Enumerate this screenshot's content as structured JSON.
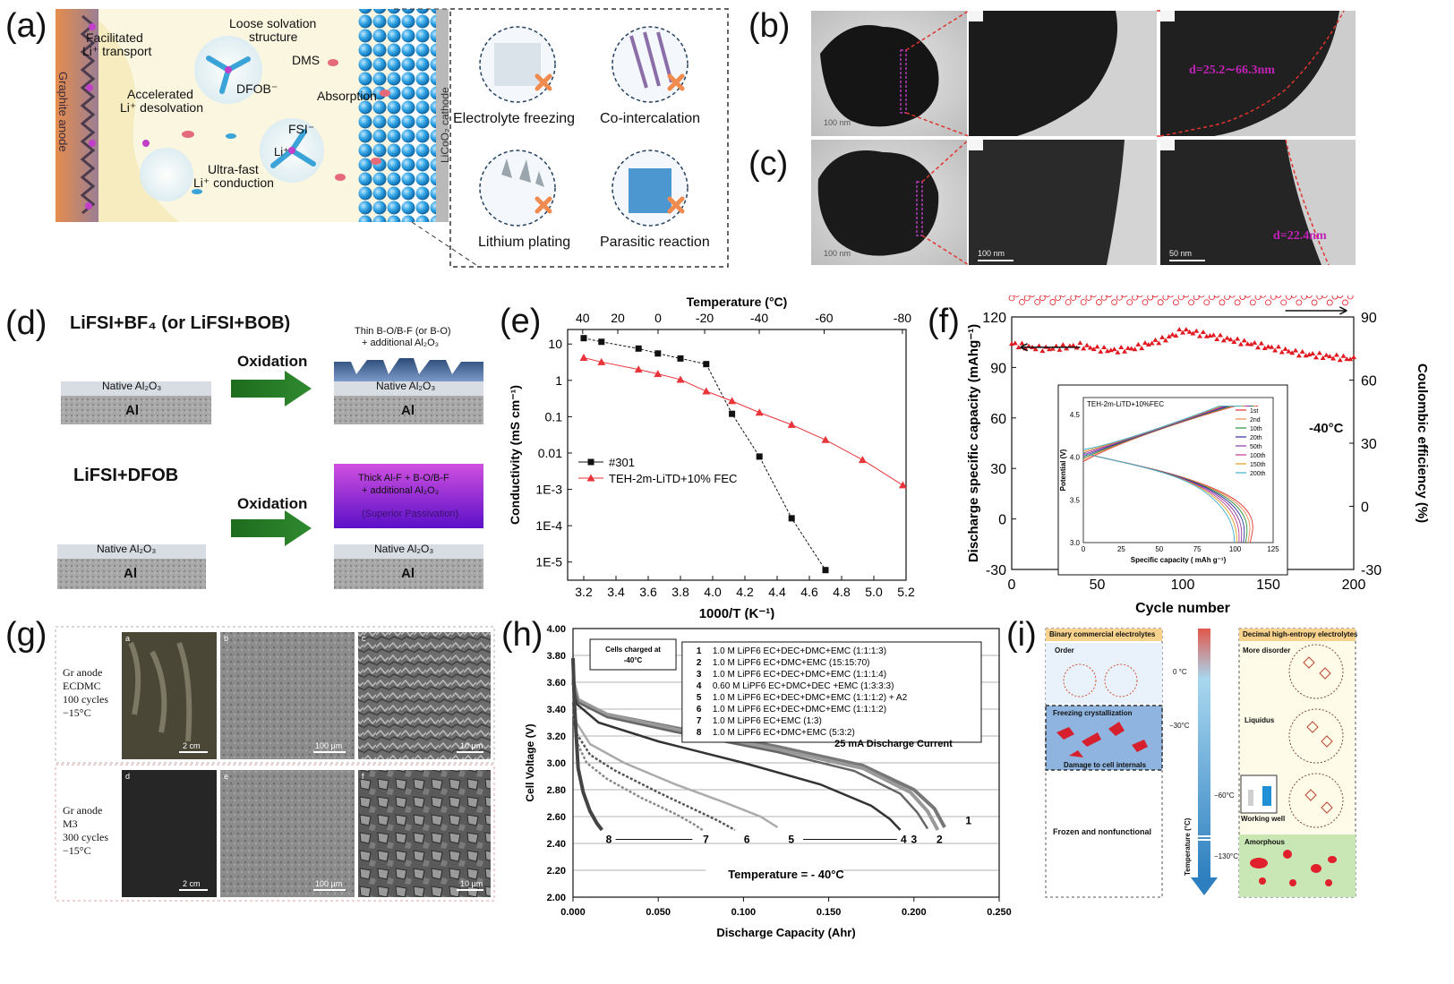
{
  "panels": {
    "a": {
      "label": "(a)",
      "graphite": "Graphite anode",
      "cathode": "LiCoO₂ cathode",
      "texts": [
        "Facilitated",
        "Li⁺ transport",
        "Accelerated",
        "Li⁺ desolvation",
        "Loose solvation",
        "structure",
        "DMS",
        "DFOB⁻",
        "FSI⁻",
        "Li⁺",
        "Absorption",
        "Ultra-fast",
        "Li⁺ conduction"
      ],
      "issues": [
        "Electrolyte freezing",
        "Co-intercalation",
        "Lithium plating",
        "Parasitic reaction"
      ]
    },
    "b": {
      "label": "(b)",
      "annotation": "d=25.2∼66.3nm",
      "scale": [
        "100 nm",
        "",
        ""
      ]
    },
    "c": {
      "label": "(c)",
      "annotation": "d=22.4nm",
      "scale": [
        "100 nm",
        "100 nm",
        "50 nm"
      ]
    },
    "d": {
      "label": "(d)",
      "title1": "LiFSI+BF₄ (or LiFSI+BOB)",
      "title2": "LiFSI+DFOB",
      "oxidation": "Oxidation",
      "native": "Native Al₂O₃",
      "al": "Al",
      "thin_layer": [
        "Thin B-O/B-F (or B-O)",
        "+ additional Al₂O₃"
      ],
      "thick_layer": [
        "Thick Al-F + B-O/B-F",
        "+ additional Al₂O₃",
        "(Superior Passivation)"
      ]
    },
    "e": {
      "label": "(e)"
    },
    "f": {
      "label": "(f)",
      "temp_note": "-40°C",
      "inset_title": "TEH-2m-LiTD+10%FEC",
      "inset_xlabel": "Specific capacity ( mAh g⁻¹)",
      "inset_ylabel": "Potential (V)",
      "inset_xticks": [
        "0",
        "25",
        "50",
        "75",
        "100",
        "125"
      ],
      "inset_yticks": [
        "3.0",
        "3.5",
        "4.0",
        "4.5"
      ],
      "inset_legend": [
        "1st",
        "2nd",
        "10th",
        "20th",
        "50th",
        "100th",
        "150th",
        "200th"
      ]
    },
    "g": {
      "label": "(g)",
      "row1": [
        "Gr anode",
        "ECDMC",
        "100 cycles",
        "−15°C"
      ],
      "row2": [
        "Gr anode",
        "M3",
        "300 cycles",
        "−15°C"
      ],
      "sublabels": [
        "a",
        "b",
        "c",
        "d",
        "e",
        "f"
      ],
      "scales": [
        "2 cm",
        "100 μm",
        "10 μm",
        "2 cm",
        "100 μm",
        "10 μm"
      ]
    },
    "h": {
      "label": "(h)"
    },
    "i": {
      "label": "(i)",
      "left_title": "Binary commercial electrolytes",
      "right_title": "Decimal high-entropy electrolytes",
      "order": "Order",
      "freezing": "Freezing crystallization",
      "damage": "Damage to cell internals",
      "frozen": "Frozen and nonfunctional",
      "more_disorder": "More disorder",
      "liquidus": "Liquidus",
      "working": "Working well",
      "amorphous": "Amorphous",
      "axis_label": "Temperature (°C)",
      "temps": [
        "0 °C",
        "−30°C",
        "−60°C",
        "−130°C"
      ]
    }
  },
  "chart_data": [
    {
      "id": "e",
      "type": "line",
      "xlabel": "1000/T (K⁻¹)",
      "ylabel": "Conductivity (mS cm⁻¹)",
      "top_axis_label": "Temperature (°C)",
      "top_ticks": [
        "40",
        "20",
        "0",
        "-20",
        "-40",
        "-60",
        "-80"
      ],
      "xlim": [
        3.1,
        5.2
      ],
      "ylim_log10": [
        -5.5,
        1.4
      ],
      "xticks": [
        "3.2",
        "3.4",
        "3.6",
        "3.8",
        "4.0",
        "4.2",
        "4.4",
        "4.6",
        "4.8",
        "5.0",
        "5.2"
      ],
      "yticks": [
        "1E-5",
        "1E-4",
        "1E-3",
        "0.01",
        "0.1",
        "1",
        "10"
      ],
      "legend_position": "lower-left",
      "series": [
        {
          "name": "#301",
          "color": "#111111",
          "marker": "square",
          "x": [
            3.2,
            3.31,
            3.54,
            3.66,
            3.8,
            3.96,
            4.12,
            4.29,
            4.49,
            4.7
          ],
          "y": [
            14.5,
            11.5,
            7.5,
            5.5,
            4.0,
            2.8,
            0.12,
            0.008,
            0.00016,
            6e-06
          ]
        },
        {
          "name": "TEH-2m-LiTD+10% FEC",
          "color": "#e8343a",
          "marker": "triangle",
          "x": [
            3.2,
            3.31,
            3.54,
            3.66,
            3.8,
            3.96,
            4.12,
            4.29,
            4.49,
            4.7,
            4.93,
            5.18
          ],
          "y": [
            4.2,
            3.2,
            2.0,
            1.5,
            1.05,
            0.5,
            0.27,
            0.13,
            0.06,
            0.023,
            0.0065,
            0.0013
          ]
        }
      ]
    },
    {
      "id": "f",
      "type": "scatter",
      "xlabel": "Cycle number",
      "ylabel_left": "Discharge specific capacity (mAhg⁻¹)",
      "ylabel_right": "Coulombic efficiency (%)",
      "xlim": [
        0,
        200
      ],
      "ylim_left": [
        -30,
        120
      ],
      "ylim_right": [
        -30,
        90
      ],
      "xticks": [
        "0",
        "50",
        "100",
        "150",
        "200"
      ],
      "yticks_left": [
        "-30",
        "0",
        "30",
        "60",
        "90",
        "120"
      ],
      "yticks_right": [
        "-30",
        "0",
        "30",
        "60",
        "90"
      ],
      "series": [
        {
          "name": "Discharge capacity",
          "color": "#e11a22",
          "x": [
            0,
            10,
            20,
            30,
            40,
            50,
            60,
            70,
            80,
            90,
            100,
            110,
            120,
            130,
            140,
            150,
            160,
            170,
            180,
            190,
            200
          ],
          "y": [
            104,
            102,
            101,
            102,
            103,
            101,
            100,
            101,
            104,
            107,
            112,
            110,
            108,
            106,
            104,
            102,
            100,
            98,
            97,
            96,
            95
          ]
        },
        {
          "name": "Coulombic efficiency",
          "color": "#e11a22",
          "x": [
            0,
            20,
            40,
            60,
            80,
            100,
            120,
            140,
            160,
            180,
            200
          ],
          "y": [
            99,
            99,
            99,
            99,
            99,
            99,
            99,
            99,
            99,
            99,
            99
          ]
        }
      ]
    },
    {
      "id": "h",
      "type": "line",
      "title": "25 mA Discharge Current",
      "note": "Cells charged at -40°C",
      "temperature": "Temperature = - 40°C",
      "xlabel": "Discharge Capacity (Ahr)",
      "ylabel": "Cell Voltage (V)",
      "xlim": [
        0,
        0.25
      ],
      "ylim": [
        2.0,
        4.0
      ],
      "xticks": [
        "0.000",
        "0.050",
        "0.100",
        "0.150",
        "0.200",
        "0.250"
      ],
      "yticks": [
        "2.00",
        "2.20",
        "2.40",
        "2.60",
        "2.80",
        "3.00",
        "3.20",
        "3.40",
        "3.60",
        "3.80",
        "4.00"
      ],
      "legend": [
        "1.0 M LiPF6 EC+DEC+DMC+EMC (1:1:1:3)",
        "1.0 M LiPF6 EC+DMC+EMC (15:15:70)",
        "1.0 M LiPF6 EC+DEC+DMC+EMC (1:1:1:4)",
        "0.60 M LiPF6 EC+DMC+DEC +EMC (1:3:3:3)",
        "1.0 M LiPF6 EC+DEC+DMC+EMC (1:1:1:2) + A2",
        "1.0 M LiPF6 EC+DEC+DMC+EMC (1:1:1:2)",
        "1.0 M LiPF6 EC+EMC (1:3)",
        "1.0 M LiPF6 EC+DMC+EMC (5:3:2)"
      ],
      "series": [
        {
          "name": "1",
          "x": [
            0,
            0.003,
            0.02,
            0.06,
            0.12,
            0.17,
            0.2,
            0.212,
            0.218
          ],
          "y": [
            3.6,
            3.46,
            3.36,
            3.26,
            3.12,
            2.98,
            2.8,
            2.66,
            2.52
          ]
        },
        {
          "name": "2",
          "x": [
            0,
            0.003,
            0.02,
            0.06,
            0.12,
            0.17,
            0.198,
            0.208,
            0.214
          ],
          "y": [
            3.62,
            3.47,
            3.36,
            3.25,
            3.1,
            2.96,
            2.78,
            2.64,
            2.5
          ]
        },
        {
          "name": "3",
          "x": [
            0,
            0.003,
            0.02,
            0.06,
            0.12,
            0.165,
            0.192,
            0.202,
            0.208
          ],
          "y": [
            3.58,
            3.45,
            3.34,
            3.23,
            3.08,
            2.94,
            2.77,
            2.63,
            2.51
          ]
        },
        {
          "name": "4",
          "x": [
            0,
            0.002,
            0.015,
            0.05,
            0.1,
            0.145,
            0.175,
            0.186,
            0.192
          ],
          "y": [
            3.55,
            3.44,
            3.3,
            3.16,
            3.0,
            2.84,
            2.68,
            2.58,
            2.5
          ]
        },
        {
          "name": "5",
          "x": [
            0,
            0.002,
            0.01,
            0.03,
            0.06,
            0.09,
            0.11,
            0.12
          ],
          "y": [
            3.5,
            3.3,
            3.14,
            3.0,
            2.84,
            2.7,
            2.6,
            2.52
          ]
        },
        {
          "name": "6",
          "x": [
            0,
            0.002,
            0.01,
            0.025,
            0.05,
            0.07,
            0.085,
            0.095
          ],
          "y": [
            3.45,
            3.22,
            3.06,
            2.94,
            2.78,
            2.66,
            2.57,
            2.5
          ]
        },
        {
          "name": "7",
          "x": [
            0,
            0.002,
            0.008,
            0.02,
            0.04,
            0.06,
            0.07,
            0.076
          ],
          "y": [
            3.4,
            3.16,
            3.0,
            2.88,
            2.74,
            2.62,
            2.55,
            2.5
          ]
        },
        {
          "name": "8",
          "x": [
            0,
            0.001,
            0.003,
            0.006,
            0.01,
            0.014,
            0.017
          ],
          "y": [
            3.78,
            3.4,
            2.96,
            2.78,
            2.64,
            2.55,
            2.5
          ]
        }
      ]
    }
  ]
}
